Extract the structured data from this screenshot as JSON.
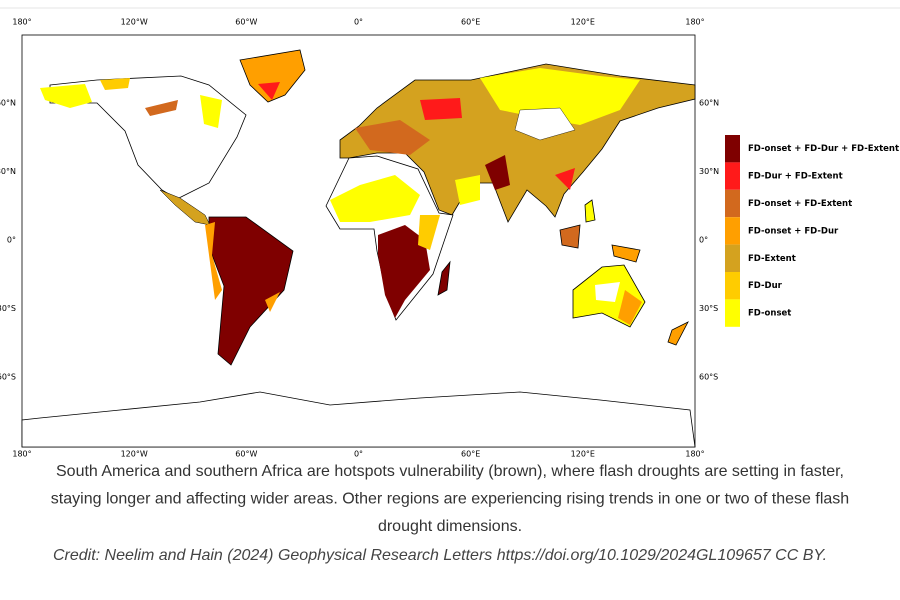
{
  "map": {
    "lon_labels": [
      "180°",
      "120°W",
      "60°W",
      "0°",
      "60°E",
      "120°E",
      "180°"
    ],
    "lat_labels": [
      "60°N",
      "30°N",
      "0°",
      "30°S",
      "60°S"
    ]
  },
  "legend": {
    "items": [
      {
        "label": "FD-onset + FD-Dur + FD-Extent",
        "color": "#7f0000"
      },
      {
        "label": "FD-Dur + FD-Extent",
        "color": "#ff1a1a"
      },
      {
        "label": "FD-onset + FD-Extent",
        "color": "#d2691e"
      },
      {
        "label": "FD-onset + FD-Dur",
        "color": "#ff9f00"
      },
      {
        "label": "FD-Extent",
        "color": "#d4a21f"
      },
      {
        "label": "FD-Dur",
        "color": "#ffcc00"
      },
      {
        "label": "FD-onset",
        "color": "#ffff00"
      }
    ]
  },
  "caption": {
    "lines": [
      "South America and southern Africa are hotspots vulnerability (brown), where flash droughts are setting in faster,",
      "staying longer and affecting wider areas. Other regions are experiencing rising trends in one or two of these flash",
      "drought dimensions."
    ],
    "credit": "Credit: Neelim and Hain (2024) Geophysical Research Letters https://doi.org/10.1029/2024GL109657 CC BY."
  }
}
